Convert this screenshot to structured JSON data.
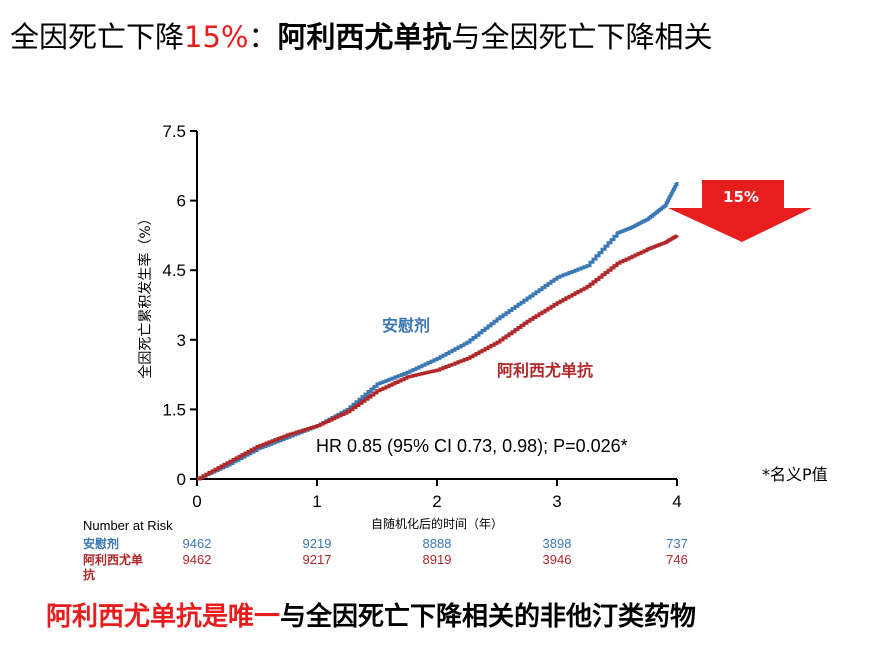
{
  "title": {
    "part1": "全因死亡下降",
    "part2": "15%",
    "part3": "：",
    "part4": "阿利西尤单抗",
    "part5": "与全因死亡下降相关"
  },
  "bottom": {
    "part1": "阿利西尤单抗是唯一",
    "part2": "与全因死亡下降相关的非他汀类药物"
  },
  "footnote": "*名义P值",
  "colors": {
    "placebo": "#3a78b3",
    "drug": "#b0282a",
    "accent": "#e81e1e"
  },
  "chart_data": {
    "type": "line",
    "xlabel": "自随机化后的时间（年）",
    "ylabel": "全因死亡累积发生率（%）",
    "xlim": [
      0,
      4
    ],
    "ylim": [
      0,
      7.5
    ],
    "xticks": [
      "0",
      "1",
      "2",
      "3",
      "4"
    ],
    "yticks": [
      "0",
      "1.5",
      "3",
      "4.5",
      "6",
      "7.5"
    ],
    "series": [
      {
        "name": "安慰剂",
        "color": "#3a78b3",
        "x": [
          0,
          0.25,
          0.5,
          0.75,
          1.0,
          1.25,
          1.5,
          1.75,
          2.0,
          2.25,
          2.5,
          2.75,
          3.0,
          3.25,
          3.5,
          3.6,
          3.75,
          3.9,
          4.0
        ],
        "y": [
          0,
          0.3,
          0.65,
          0.9,
          1.15,
          1.5,
          2.05,
          2.3,
          2.6,
          2.95,
          3.45,
          3.9,
          4.35,
          4.6,
          5.3,
          5.4,
          5.6,
          5.9,
          6.4
        ]
      },
      {
        "name": "阿利西尤单抗",
        "color": "#b0282a",
        "x": [
          0,
          0.25,
          0.5,
          0.75,
          1.0,
          1.25,
          1.5,
          1.75,
          2.0,
          2.25,
          2.5,
          2.75,
          3.0,
          3.25,
          3.5,
          3.75,
          3.9,
          4.0
        ],
        "y": [
          0,
          0.35,
          0.7,
          0.95,
          1.15,
          1.45,
          1.9,
          2.2,
          2.35,
          2.6,
          2.95,
          3.4,
          3.8,
          4.15,
          4.65,
          4.95,
          5.1,
          5.25
        ]
      }
    ],
    "annotations": {
      "placebo_label": "安慰剂",
      "drug_label": "阿利西尤单抗",
      "hr_text": "HR 0.85 (95% CI 0.73, 0.98); P=0.026*",
      "arrow_text": "15%"
    },
    "risk_table": {
      "header": "Number at Risk",
      "rows": [
        {
          "label": "安慰剂",
          "values": [
            "9462",
            "9219",
            "8888",
            "3898",
            "737"
          ]
        },
        {
          "label": "阿利西尤单抗",
          "values": [
            "9462",
            "9217",
            "8919",
            "3946",
            "746"
          ]
        }
      ]
    }
  }
}
